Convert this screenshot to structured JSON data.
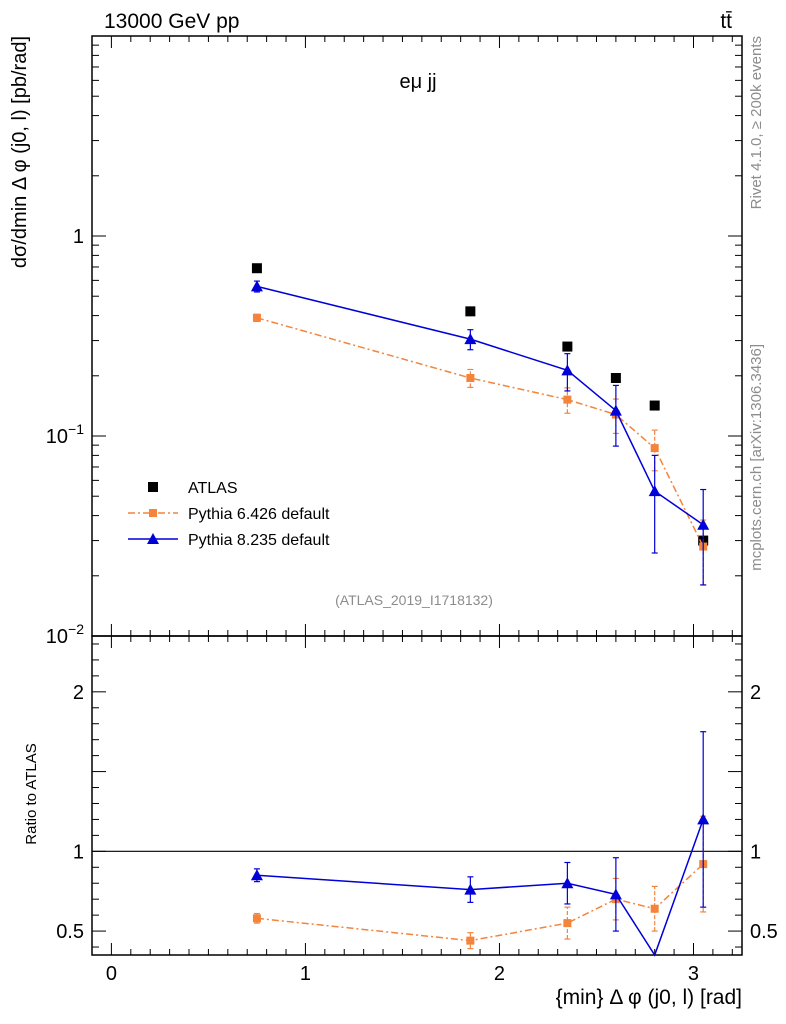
{
  "header": {
    "energy_label": "13000 GeV pp",
    "process_label": "tt̄"
  },
  "side_text": {
    "rivet": "Rivet 4.1.0, ≥ 200k events",
    "mcplots": "mcplots.cern.ch [arXiv:1306.3436]"
  },
  "chart_data": [
    {
      "type": "scatter",
      "title": "eμ jj",
      "analysis_label": "(ATLAS_2019_I1718132)",
      "ylabel": "dσ/dmin Δ φ (j0, l) [pb/rad]",
      "yscale": "log",
      "ylim": [
        0.01,
        10
      ],
      "xlim": [
        -0.1,
        3.25
      ],
      "y_ticks": [
        {
          "value": 1,
          "label": "1"
        },
        {
          "value": 0.1,
          "label": "10−1"
        },
        {
          "value": 0.01,
          "label": "10−2"
        }
      ],
      "legend_position": "lower-left",
      "series": [
        {
          "name": "ATLAS",
          "color": "#000000",
          "marker": "square",
          "x": [
            0.75,
            1.85,
            2.35,
            2.6,
            2.8,
            3.05
          ],
          "y": [
            0.69,
            0.42,
            0.28,
            0.195,
            0.142,
            0.03
          ],
          "yerr": [
            0,
            0,
            0,
            0,
            0,
            0
          ]
        },
        {
          "name": "Pythia 6.426 default",
          "color": "#f4843c",
          "marker": "square",
          "line": "dashdot",
          "x": [
            0.75,
            1.85,
            2.35,
            2.6,
            2.8,
            3.05
          ],
          "y": [
            0.39,
            0.195,
            0.152,
            0.128,
            0.087,
            0.028
          ],
          "yerr": [
            0.016,
            0.02,
            0.022,
            0.025,
            0.02,
            0.01
          ]
        },
        {
          "name": "Pythia 8.235 default",
          "color": "#0000d8",
          "marker": "triangle",
          "line": "solid",
          "x": [
            0.75,
            1.85,
            2.35,
            2.6,
            2.8,
            3.05
          ],
          "y": [
            0.56,
            0.305,
            0.213,
            0.134,
            0.053,
            0.036
          ],
          "yerr": [
            0.035,
            0.035,
            0.045,
            0.045,
            0.027,
            0.018
          ]
        }
      ]
    },
    {
      "type": "scatter",
      "ylabel": "Ratio to ATLAS",
      "xlabel": "{min} Δ φ (j0, l) [rad]",
      "ylim": [
        0.35,
        2.35
      ],
      "xlim": [
        -0.1,
        3.25
      ],
      "reference_line": 1,
      "y_ticks": [
        {
          "value": 0.5,
          "label": "0.5"
        },
        {
          "value": 1,
          "label": "1"
        },
        {
          "value": 2,
          "label": "2"
        }
      ],
      "x_ticks": [
        {
          "value": 0,
          "label": "0"
        },
        {
          "value": 1,
          "label": "1"
        },
        {
          "value": 2,
          "label": "2"
        },
        {
          "value": 3,
          "label": "3"
        }
      ],
      "series": [
        {
          "name": "Pythia 6.426 default",
          "color": "#f4843c",
          "marker": "square",
          "line": "dashdot",
          "x": [
            0.75,
            1.85,
            2.35,
            2.6,
            2.8,
            3.05
          ],
          "y": [
            0.58,
            0.44,
            0.55,
            0.7,
            0.64,
            0.92
          ],
          "yerr": [
            0.03,
            0.05,
            0.1,
            0.13,
            0.14,
            0.3
          ]
        },
        {
          "name": "Pythia 8.235 default",
          "color": "#0000d8",
          "marker": "triangle",
          "line": "solid",
          "x": [
            0.75,
            1.85,
            2.35,
            2.6,
            2.8,
            3.05
          ],
          "y": [
            0.85,
            0.76,
            0.8,
            0.73,
            0.33,
            1.2
          ],
          "yerr": [
            0.04,
            0.08,
            0.13,
            0.23,
            0.0,
            0.55
          ]
        }
      ]
    }
  ]
}
